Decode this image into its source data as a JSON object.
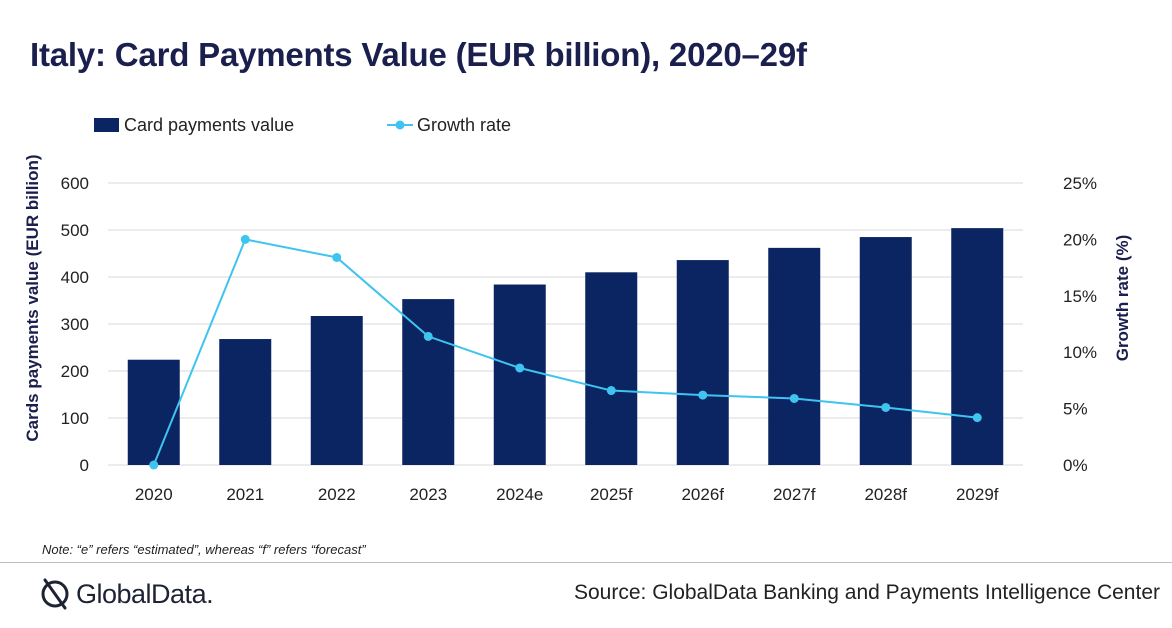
{
  "title": "Italy: Card Payments Value (EUR billion), 2020–29f",
  "legend": {
    "bar_label": "Card payments value",
    "line_label": "Growth rate"
  },
  "note": "Note: “e” refers “estimated”, whereas “f” refers “forecast”",
  "source": "Source: GlobalData Banking and Payments Intelligence Center",
  "logo": {
    "text": "GlobalData.",
    "icon": "globaldata-logo-icon"
  },
  "colors": {
    "bar": "#0b2462",
    "line": "#3ec4ef",
    "grid": "#d9d9d9",
    "axis_title": "#1a1f4d"
  },
  "chart_data": {
    "type": "bar",
    "categories": [
      "2020",
      "2021",
      "2022",
      "2023",
      "2024e",
      "2025f",
      "2026f",
      "2027f",
      "2028f",
      "2029f"
    ],
    "series": [
      {
        "name": "Card payments value",
        "type": "bar",
        "axis": "left",
        "values": [
          224,
          268,
          317,
          353,
          384,
          410,
          436,
          462,
          485,
          504
        ]
      },
      {
        "name": "Growth rate",
        "type": "line",
        "axis": "right",
        "values": [
          0.0,
          20.0,
          18.4,
          11.4,
          8.6,
          6.6,
          6.2,
          5.9,
          5.1,
          4.2
        ]
      }
    ],
    "ylabel": "Cards payments value (EUR billion)",
    "ylim": [
      0,
      600
    ],
    "yticks": [
      "0",
      "100",
      "200",
      "300",
      "400",
      "500",
      "600"
    ],
    "y2label": "Growth rate (%)",
    "y2lim": [
      0,
      25
    ],
    "y2ticks": [
      "0%",
      "5%",
      "10%",
      "15%",
      "20%",
      "25%"
    ],
    "grid": true,
    "legend_position": "top-left"
  }
}
